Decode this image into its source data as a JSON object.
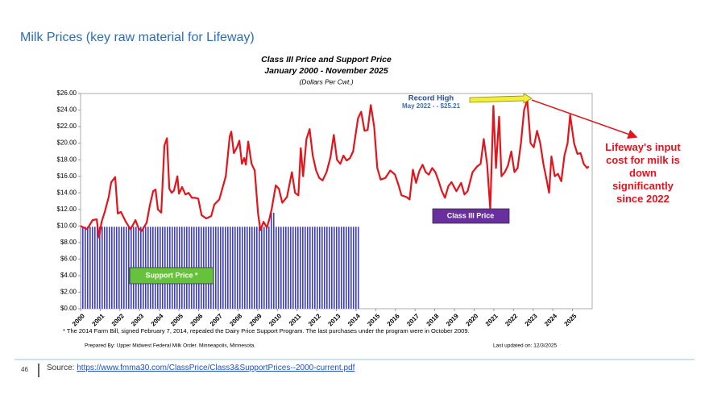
{
  "slide": {
    "title": "Milk Prices (key raw material for Lifeway)",
    "page_number": 46,
    "source_label": "Source:",
    "source_url": "https://www.fmma30.com/ClassPrice/Class3&SupportPrices--2000-current.pdf",
    "callout": "Lifeway's input cost for milk is down significantly since 2022"
  },
  "chart_data": {
    "type": "line",
    "title": "Class III Price and Support Price",
    "subtitle": "January 2000 - November 2025",
    "unit_label": "(Dollars Per Cwt.)",
    "annotations": {
      "record_title": "Record High",
      "record_text": "May 2022 - - $25.21",
      "footnote": "* The 2014 Farm Bill, signed February 7, 2014,  repealed the Dairy Price Support Program.  The last purchases under the program were in October 2009.",
      "prepared_by": "Prepared By:  Upper Midwest Federal Milk Order. Minneapolis, Minnesota.",
      "updated": "Last updated on:  12/3/2025"
    },
    "xlim": [
      2000,
      2026
    ],
    "xticks": [
      2000,
      2001,
      2002,
      2003,
      2004,
      2005,
      2006,
      2007,
      2008,
      2009,
      2010,
      2011,
      2012,
      2013,
      2014,
      2015,
      2016,
      2017,
      2018,
      2019,
      2020,
      2021,
      2022,
      2023,
      2024,
      2025
    ],
    "ylim": [
      0,
      26
    ],
    "yticks": [
      {
        "value": 0,
        "label": "$0.00"
      },
      {
        "value": 2,
        "label": "$2.00"
      },
      {
        "value": 4,
        "label": "$4.00"
      },
      {
        "value": 6,
        "label": "$6.00"
      },
      {
        "value": 8,
        "label": "$8.00"
      },
      {
        "value": 10,
        "label": "$10.00"
      },
      {
        "value": 12,
        "label": "$12.00"
      },
      {
        "value": 14,
        "label": "$14.00"
      },
      {
        "value": 16,
        "label": "$16.00"
      },
      {
        "value": 18,
        "label": "$18.00"
      },
      {
        "value": 20,
        "label": "$20.00"
      },
      {
        "value": 22,
        "label": "$22.00"
      },
      {
        "value": 24,
        "label": "$24.00"
      },
      {
        "value": 26,
        "label": "$26.00"
      }
    ],
    "grid": false,
    "series": [
      {
        "name": "Class III Price",
        "color": "#e3141b",
        "x": [
          2000.0,
          2000.33,
          2000.61,
          2000.82,
          2000.94,
          2001.07,
          2001.23,
          2001.43,
          2001.56,
          2001.76,
          2001.89,
          2002.05,
          2002.3,
          2002.54,
          2002.79,
          2002.95,
          2003.11,
          2003.36,
          2003.52,
          2003.69,
          2003.81,
          2003.93,
          2004.1,
          2004.26,
          2004.39,
          2004.51,
          2004.63,
          2004.75,
          2004.92,
          2005.0,
          2005.16,
          2005.33,
          2005.49,
          2005.66,
          2005.82,
          2005.98,
          2006.15,
          2006.39,
          2006.64,
          2006.8,
          2007.05,
          2007.38,
          2007.58,
          2007.66,
          2007.79,
          2007.95,
          2008.07,
          2008.2,
          2008.32,
          2008.4,
          2008.52,
          2008.69,
          2008.85,
          2009.02,
          2009.14,
          2009.3,
          2009.47,
          2009.59,
          2009.71,
          2009.92,
          2010.08,
          2010.25,
          2010.49,
          2010.74,
          2010.9,
          2011.07,
          2011.19,
          2011.31,
          2011.48,
          2011.64,
          2011.8,
          2011.97,
          2012.13,
          2012.3,
          2012.5,
          2012.7,
          2012.87,
          2013.03,
          2013.2,
          2013.36,
          2013.52,
          2013.69,
          2013.85,
          2014.1,
          2014.26,
          2014.43,
          2014.59,
          2014.75,
          2014.92,
          2015.08,
          2015.25,
          2015.49,
          2015.74,
          2015.98,
          2016.15,
          2016.31,
          2016.56,
          2016.72,
          2016.89,
          2017.05,
          2017.21,
          2017.38,
          2017.54,
          2017.7,
          2017.87,
          2018.03,
          2018.2,
          2018.36,
          2018.52,
          2018.69,
          2018.85,
          2019.1,
          2019.34,
          2019.51,
          2019.67,
          2019.92,
          2020.16,
          2020.33,
          2020.49,
          2020.66,
          2020.82,
          2020.98,
          2021.11,
          2021.27,
          2021.39,
          2021.56,
          2021.72,
          2021.89,
          2022.05,
          2022.21,
          2022.38,
          2022.54,
          2022.7,
          2022.87,
          2023.03,
          2023.2,
          2023.36,
          2023.52,
          2023.69,
          2023.81,
          2023.93,
          2024.1,
          2024.26,
          2024.43,
          2024.59,
          2024.75,
          2024.88,
          2025.08,
          2025.25,
          2025.41,
          2025.57,
          2025.74,
          2025.83
        ],
        "values": [
          10.0,
          9.6,
          10.7,
          10.8,
          8.6,
          10.5,
          11.7,
          13.5,
          15.3,
          15.9,
          11.5,
          11.7,
          10.5,
          9.6,
          10.7,
          9.7,
          9.4,
          10.4,
          12.5,
          14.2,
          14.4,
          12.0,
          11.6,
          19.7,
          20.6,
          14.5,
          14.0,
          14.3,
          16.0,
          13.9,
          14.7,
          13.8,
          14.0,
          13.4,
          13.4,
          13.3,
          11.3,
          10.9,
          11.2,
          12.6,
          13.2,
          16.0,
          20.8,
          21.4,
          18.8,
          19.5,
          20.3,
          17.5,
          18.2,
          17.4,
          20.2,
          17.5,
          16.7,
          11.5,
          9.5,
          10.5,
          9.8,
          10.8,
          12.0,
          14.9,
          14.5,
          12.8,
          13.5,
          16.5,
          14.0,
          13.7,
          19.4,
          16.0,
          20.5,
          21.7,
          18.5,
          16.7,
          15.8,
          15.5,
          16.5,
          18.3,
          21.0,
          18.0,
          17.5,
          18.5,
          17.9,
          18.2,
          19.0,
          23.0,
          23.8,
          21.5,
          21.6,
          24.6,
          22.0,
          17.0,
          15.6,
          15.8,
          16.7,
          16.2,
          15.0,
          13.7,
          13.5,
          13.2,
          16.8,
          15.2,
          16.6,
          17.4,
          16.5,
          16.2,
          17.0,
          16.5,
          15.4,
          14.2,
          13.4,
          14.8,
          15.3,
          14.2,
          15.2,
          13.8,
          14.2,
          16.5,
          17.2,
          17.5,
          20.5,
          17.5,
          12.0,
          24.5,
          17.0,
          23.2,
          16.0,
          16.5,
          17.3,
          19.0,
          16.5,
          17.0,
          20.0,
          24.0,
          25.2,
          20.0,
          19.5,
          21.5,
          20.0,
          17.5,
          15.5,
          14.0,
          18.4,
          16.0,
          16.3,
          15.4,
          18.5,
          20.0,
          23.4,
          20.0,
          18.7,
          18.8,
          17.5,
          17.0,
          17.2
        ]
      },
      {
        "name": "Support Price *",
        "color": "#3b3bd9",
        "type": "histogram",
        "bins": [
          2000.0,
          2009.6,
          2009.85,
          2014.15
        ],
        "values": [
          9.9,
          11.6,
          9.9
        ]
      }
    ]
  }
}
